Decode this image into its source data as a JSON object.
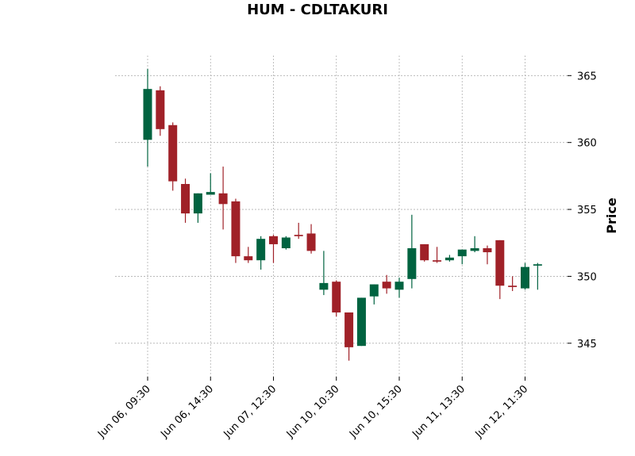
{
  "chart_data": {
    "type": "candlestick",
    "title": "HUM - CDLTAKURI",
    "ylabel": "Price",
    "xlabel": "",
    "ylim": [
      342.5,
      366.5
    ],
    "y_ticks": [
      345,
      350,
      355,
      360,
      365
    ],
    "x_tick_labels": [
      {
        "index": 0,
        "label": "Jun 06, 09:30"
      },
      {
        "index": 5,
        "label": "Jun 06, 14:30"
      },
      {
        "index": 10,
        "label": "Jun 07, 12:30"
      },
      {
        "index": 15,
        "label": "Jun 10, 10:30"
      },
      {
        "index": 20,
        "label": "Jun 10, 15:30"
      },
      {
        "index": 25,
        "label": "Jun 11, 13:30"
      },
      {
        "index": 30,
        "label": "Jun 12, 11:30"
      }
    ],
    "grid": true,
    "colors": {
      "up": "#006340",
      "down": "#a02128"
    },
    "candles": [
      {
        "open": 360.2,
        "high": 365.5,
        "low": 358.2,
        "close": 364.0
      },
      {
        "open": 363.9,
        "high": 364.2,
        "low": 360.5,
        "close": 361.0
      },
      {
        "open": 361.3,
        "high": 361.5,
        "low": 356.4,
        "close": 357.1
      },
      {
        "open": 356.9,
        "high": 357.3,
        "low": 354.0,
        "close": 354.7
      },
      {
        "open": 354.7,
        "high": 356.2,
        "low": 354.0,
        "close": 356.2
      },
      {
        "open": 356.1,
        "high": 357.7,
        "low": 356.1,
        "close": 356.3
      },
      {
        "open": 356.2,
        "high": 358.2,
        "low": 353.5,
        "close": 355.4
      },
      {
        "open": 355.6,
        "high": 355.8,
        "low": 351.0,
        "close": 351.5
      },
      {
        "open": 351.5,
        "high": 352.2,
        "low": 351.0,
        "close": 351.2
      },
      {
        "open": 351.2,
        "high": 353.0,
        "low": 350.5,
        "close": 352.8
      },
      {
        "open": 353.0,
        "high": 353.1,
        "low": 351.0,
        "close": 352.4
      },
      {
        "open": 352.1,
        "high": 353.0,
        "low": 352.0,
        "close": 352.9
      },
      {
        "open": 353.1,
        "high": 354.0,
        "low": 352.8,
        "close": 353.0
      },
      {
        "open": 353.2,
        "high": 353.9,
        "low": 351.7,
        "close": 351.9
      },
      {
        "open": 349.0,
        "high": 351.9,
        "low": 348.6,
        "close": 349.5
      },
      {
        "open": 349.6,
        "high": 349.7,
        "low": 347.0,
        "close": 347.3
      },
      {
        "open": 347.3,
        "high": 347.3,
        "low": 343.7,
        "close": 344.7
      },
      {
        "open": 344.8,
        "high": 348.4,
        "low": 344.8,
        "close": 348.4
      },
      {
        "open": 348.5,
        "high": 349.4,
        "low": 347.9,
        "close": 349.4
      },
      {
        "open": 349.6,
        "high": 350.1,
        "low": 348.7,
        "close": 349.1
      },
      {
        "open": 349.0,
        "high": 349.9,
        "low": 348.4,
        "close": 349.6
      },
      {
        "open": 349.8,
        "high": 354.6,
        "low": 349.1,
        "close": 352.1
      },
      {
        "open": 352.4,
        "high": 352.4,
        "low": 351.1,
        "close": 351.2
      },
      {
        "open": 351.2,
        "high": 352.2,
        "low": 351.0,
        "close": 351.1
      },
      {
        "open": 351.2,
        "high": 351.6,
        "low": 351.1,
        "close": 351.4
      },
      {
        "open": 351.5,
        "high": 352.0,
        "low": 350.9,
        "close": 352.0
      },
      {
        "open": 351.9,
        "high": 353.0,
        "low": 351.8,
        "close": 352.1
      },
      {
        "open": 352.1,
        "high": 352.3,
        "low": 350.9,
        "close": 351.8
      },
      {
        "open": 352.7,
        "high": 352.7,
        "low": 348.3,
        "close": 349.3
      },
      {
        "open": 349.3,
        "high": 350.0,
        "low": 348.9,
        "close": 349.2
      },
      {
        "open": 349.1,
        "high": 351.0,
        "low": 349.0,
        "close": 350.7
      },
      {
        "open": 350.8,
        "high": 351.0,
        "low": 349.0,
        "close": 350.9
      }
    ]
  }
}
